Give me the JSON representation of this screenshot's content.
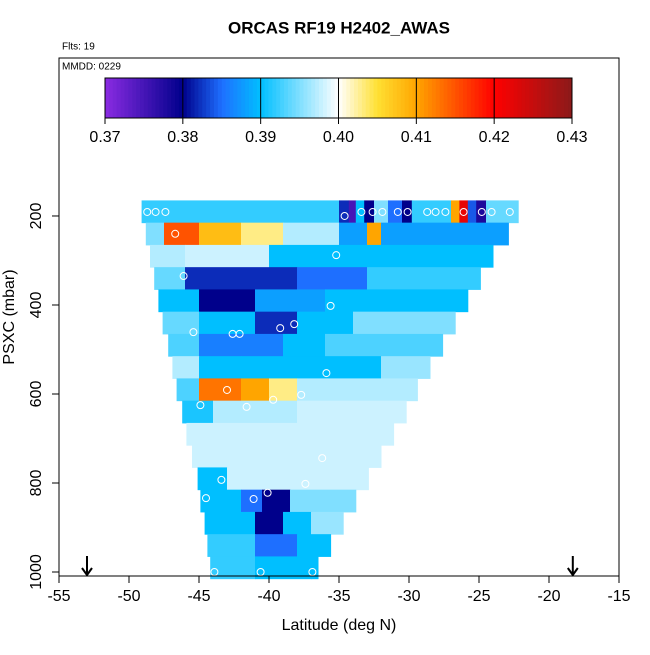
{
  "chart_data": {
    "type": "curtain",
    "title": "ORCAS RF19 H2402_AWAS",
    "notes": [
      "Flts: 19",
      "MMDD: 0229"
    ],
    "xlabel": "Latitude (deg N)",
    "ylabel": "PSXC (mbar)",
    "xlim": [
      -55,
      -15
    ],
    "xticks": [
      -55,
      -50,
      -45,
      -40,
      -35,
      -30,
      -25,
      -20,
      -15
    ],
    "ylim": [
      1009,
      -155
    ],
    "yticks": [
      200,
      400,
      600,
      800,
      1000
    ],
    "clim": [
      0.37,
      0.43
    ],
    "cticks": [
      0.37,
      0.38,
      0.39,
      {
        "value": 0.4,
        "label": "0.40"
      },
      0.41,
      0.42,
      0.43
    ],
    "colormap": [
      {
        "value": 0.37,
        "color": "#8a2be2"
      },
      {
        "value": 0.38,
        "color": "#00008b"
      },
      {
        "value": 0.385,
        "color": "#1e6fff"
      },
      {
        "value": 0.39,
        "color": "#00bfff"
      },
      {
        "value": 0.4,
        "color": "#ffffff"
      },
      {
        "value": 0.405,
        "color": "#ffe033"
      },
      {
        "value": 0.41,
        "color": "#ffa500"
      },
      {
        "value": 0.42,
        "color": "#ff0000"
      },
      {
        "value": 0.43,
        "color": "#8b1a1a"
      }
    ],
    "rows": [
      {
        "pressure": 190,
        "lats": [
          -49.1,
          -35,
          -34.3,
          -33.8,
          -33.2,
          -32.5,
          -31.5,
          -30.5,
          -29.8,
          -27,
          -26.4,
          -25.8,
          -25.2,
          -24.5,
          -22.2
        ],
        "values": [
          0.392,
          0.382,
          0.375,
          0.39,
          0.38,
          0.395,
          0.385,
          0.38,
          0.392,
          0.41,
          0.422,
          0.384,
          0.378,
          0.394
        ]
      },
      {
        "pressure": 240,
        "lats": [
          -48.8,
          -47.5,
          -45,
          -42,
          -39,
          -35,
          -33,
          -32,
          -22.9
        ],
        "values": [
          0.395,
          0.415,
          0.408,
          0.403,
          0.397,
          0.388,
          0.41,
          0.388
        ]
      },
      {
        "pressure": 290,
        "lats": [
          -48.5,
          -46,
          -40,
          -24
        ],
        "values": [
          0.397,
          0.398,
          0.39
        ]
      },
      {
        "pressure": 340,
        "lats": [
          -48.2,
          -46,
          -38,
          -33,
          -24.9
        ],
        "values": [
          0.394,
          0.382,
          0.385,
          0.392
        ]
      },
      {
        "pressure": 390,
        "lats": [
          -47.9,
          -45,
          -41,
          -36,
          -25.8
        ],
        "values": [
          0.39,
          0.38,
          0.388,
          0.39
        ]
      },
      {
        "pressure": 440,
        "lats": [
          -47.6,
          -45,
          -41,
          -38,
          -34,
          -26.7
        ],
        "values": [
          0.394,
          0.39,
          0.382,
          0.39,
          0.395
        ]
      },
      {
        "pressure": 490,
        "lats": [
          -47.2,
          -45,
          -39,
          -36,
          -27.6
        ],
        "values": [
          0.393,
          0.386,
          0.39,
          0.393
        ]
      },
      {
        "pressure": 540,
        "lats": [
          -46.9,
          -45,
          -42,
          -32,
          -28.5
        ],
        "values": [
          0.397,
          0.39,
          0.39,
          0.396
        ]
      },
      {
        "pressure": 590,
        "lats": [
          -46.6,
          -45,
          -42,
          -40,
          -38,
          -29.4
        ],
        "values": [
          0.393,
          0.413,
          0.41,
          0.403,
          0.397
        ]
      },
      {
        "pressure": 640,
        "lats": [
          -46.2,
          -44,
          -38,
          -30.2
        ],
        "values": [
          0.391,
          0.397,
          0.398
        ]
      },
      {
        "pressure": 690,
        "lats": [
          -45.9,
          -31.1
        ],
        "values": [
          0.398
        ]
      },
      {
        "pressure": 740,
        "lats": [
          -45.5,
          -32
        ],
        "values": [
          0.398
        ]
      },
      {
        "pressure": 790,
        "lats": [
          -45.1,
          -43,
          -32.9
        ],
        "values": [
          0.39,
          0.398
        ]
      },
      {
        "pressure": 840,
        "lats": [
          -44.9,
          -42,
          -40.5,
          -38.5,
          -33.8
        ],
        "values": [
          0.39,
          0.385,
          0.38,
          0.395
        ]
      },
      {
        "pressure": 890,
        "lats": [
          -44.6,
          -41,
          -39,
          -37,
          -34.7
        ],
        "values": [
          0.39,
          0.38,
          0.39,
          0.396
        ]
      },
      {
        "pressure": 940,
        "lats": [
          -44.4,
          -41,
          -38,
          -35.6
        ],
        "values": [
          0.392,
          0.385,
          0.39
        ]
      },
      {
        "pressure": 990,
        "lats": [
          -44.2,
          -41,
          -37,
          -36.5
        ],
        "values": [
          0.392,
          0.39,
          0.39
        ]
      }
    ],
    "points": {
      "x": [
        -48.7,
        -48.1,
        -47.4,
        -34.6,
        -33.4,
        -32.6,
        -31.9,
        -30.8,
        -30.1,
        -28.7,
        -28.1,
        -27.4,
        -26.1,
        -24.8,
        -24.1,
        -22.8,
        -46.7,
        -35.2,
        -46.1,
        -35.6,
        -38.2,
        -39.2,
        -45.4,
        -42.6,
        -42.1,
        -35.9,
        -37.7,
        -43,
        -39.7,
        -44.9,
        -41.6,
        -36.2,
        -43.4,
        -37.4,
        -40.1,
        -44.5,
        -41.1,
        -43.9,
        -40.6,
        -36.9
      ],
      "y": [
        191,
        191,
        191,
        200,
        191,
        191,
        191,
        191,
        191,
        191,
        191,
        191,
        191,
        191,
        191,
        191,
        240,
        288,
        335,
        402,
        443,
        452,
        461,
        465,
        465,
        553,
        602,
        591,
        613,
        625,
        629,
        744,
        793,
        802,
        822,
        834,
        836,
        1000,
        1000,
        1000
      ]
    },
    "arrows": [
      -53,
      -18.3
    ]
  }
}
